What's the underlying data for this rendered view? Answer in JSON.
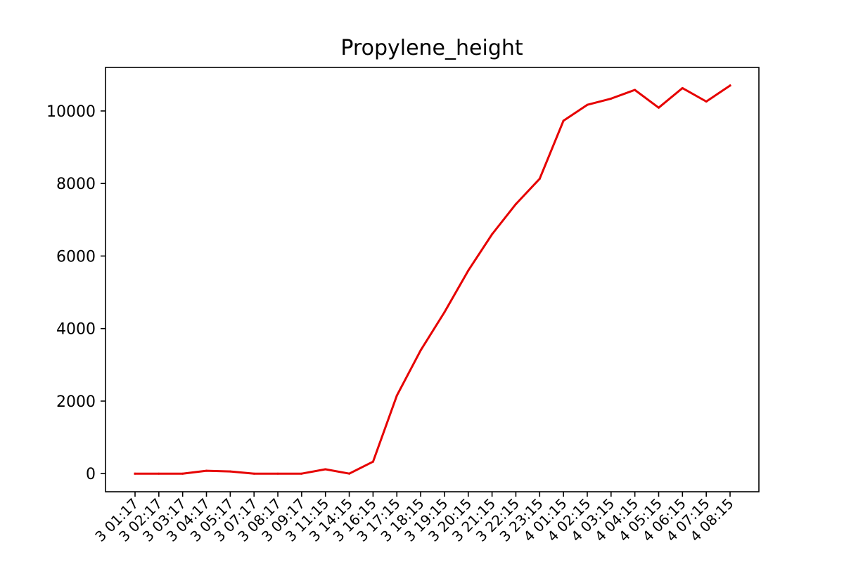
{
  "chart_data": {
    "type": "line",
    "title": "Propylene_height",
    "xlabel": "",
    "ylabel": "",
    "ylim": [
      -500,
      11200
    ],
    "yticks": [
      0,
      2000,
      4000,
      6000,
      8000,
      10000
    ],
    "grid": false,
    "legend": "none",
    "x": [
      "3 01:17",
      "3 02:17",
      "3 03:17",
      "3 04:17",
      "3 05:17",
      "3 07:17",
      "3 08:17",
      "3 09:17",
      "3 11:15",
      "3 14:15",
      "3 16:15",
      "3 17:15",
      "3 18:15",
      "3 19:15",
      "3 20:15",
      "3 21:15",
      "3 22:15",
      "3 23:15",
      "4 01:15",
      "4 02:15",
      "4 03:15",
      "4 04:15",
      "4 05:15",
      "4 06:15",
      "4 07:15",
      "4 08:15"
    ],
    "series": [
      {
        "color": "#e60000",
        "values": [
          0,
          0,
          0,
          80,
          60,
          0,
          0,
          0,
          120,
          0,
          330,
          2150,
          3400,
          4450,
          5600,
          6600,
          7430,
          8130,
          9730,
          10170,
          10340,
          10580,
          10090,
          10630,
          10260,
          10700
        ]
      }
    ]
  }
}
